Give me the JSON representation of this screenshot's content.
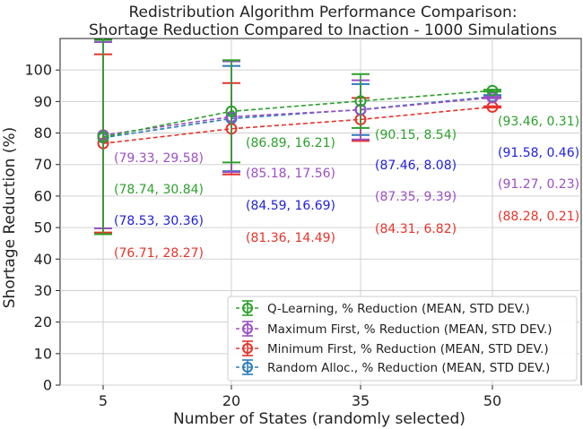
{
  "chart_data": {
    "type": "line",
    "title_lines": [
      "Redistribution Algorithm Performance Comparison:",
      "Shortage Reduction Compared to Inaction - 1000 Simulations"
    ],
    "xlabel": "Number of States (randomly selected)",
    "ylabel": "Shortage Reduction (%)",
    "categories": [
      "5",
      "20",
      "35",
      "50"
    ],
    "ylim": [
      0,
      110
    ],
    "yticks": [
      "0",
      "10",
      "20",
      "30",
      "40",
      "50",
      "60",
      "70",
      "80",
      "90",
      "100"
    ],
    "grid": true,
    "legend_position": "bottom-right",
    "series": [
      {
        "name": "Q-Learning, % Reduction (MEAN, STD DEV.)",
        "color": "#2ca02c",
        "values": [
          78.74,
          86.89,
          90.15,
          93.46
        ],
        "std": [
          30.84,
          16.21,
          8.54,
          0.31
        ],
        "labels": [
          "(78.74, 30.84)",
          "(86.89, 16.21)",
          "(90.15, 8.54)",
          "(93.46, 0.31)"
        ]
      },
      {
        "name": "Maximum First, % Reduction (MEAN, STD DEV.)",
        "color": "#9b4fc4",
        "values": [
          79.33,
          85.18,
          87.35,
          91.27
        ],
        "std": [
          29.58,
          17.56,
          9.39,
          0.23
        ],
        "labels": [
          "(79.33, 29.58)",
          "(85.18, 17.56)",
          "(87.35, 9.39)",
          "(91.27, 0.23)"
        ]
      },
      {
        "name": "Minimum First, % Reduction (MEAN, STD DEV.)",
        "color": "#e8332a",
        "values": [
          76.71,
          81.36,
          84.31,
          88.28
        ],
        "std": [
          28.27,
          14.49,
          6.82,
          0.21
        ],
        "labels": [
          "(76.71, 28.27)",
          "(81.36, 14.49)",
          "(84.31, 6.82)",
          "(88.28, 0.21)"
        ]
      },
      {
        "name": "Random Alloc., % Reduction (MEAN, STD DEV.)",
        "color": "#2b7bb9",
        "label_color": "#1f1fe0",
        "values": [
          78.53,
          84.59,
          87.46,
          91.58
        ],
        "std": [
          30.36,
          16.69,
          8.08,
          0.46
        ],
        "labels": [
          "(78.53, 30.36)",
          "(84.59, 16.69)",
          "(87.46, 8.08)",
          "(91.58, 0.46)"
        ]
      }
    ]
  }
}
